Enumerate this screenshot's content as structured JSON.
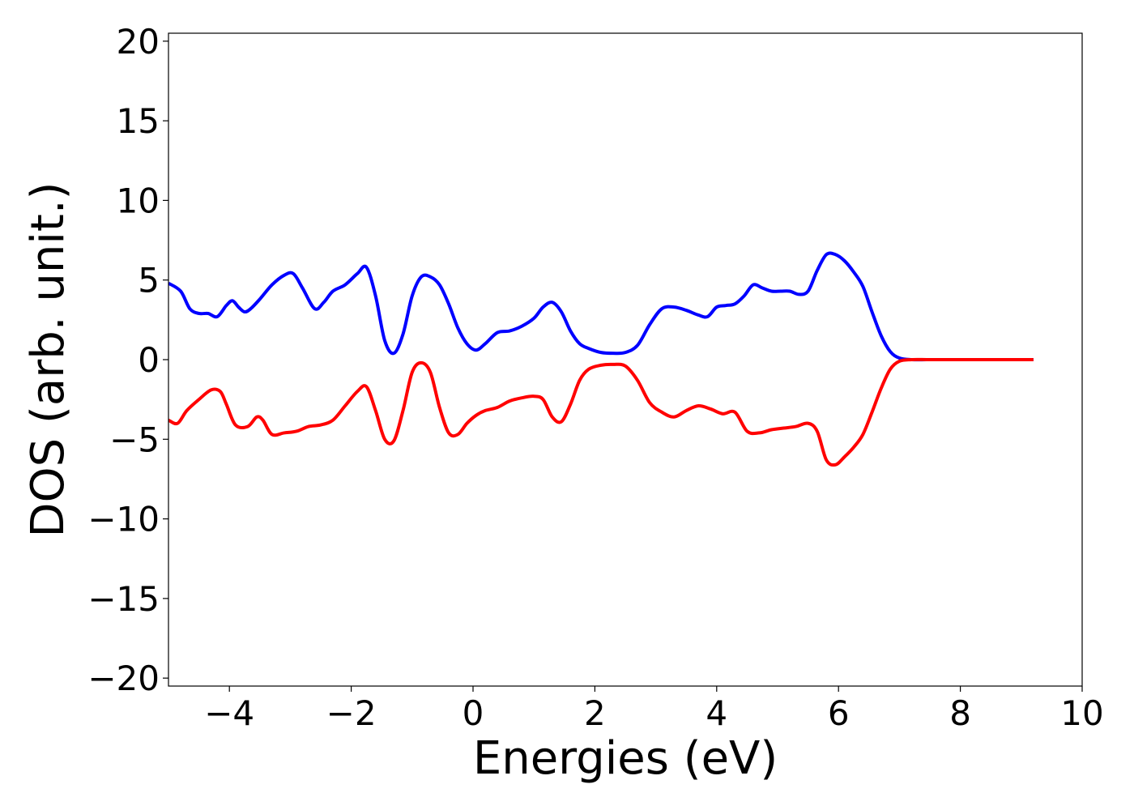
{
  "chart_data": {
    "type": "line",
    "title": "",
    "xlabel": "Energies (eV)",
    "ylabel": "DOS (arb. unit.)",
    "xlim": [
      -5.0,
      10.0
    ],
    "ylim": [
      -20.5,
      20.5
    ],
    "xticks": [
      {
        "value": -4,
        "label": "−4"
      },
      {
        "value": -2,
        "label": "−2"
      },
      {
        "value": 0,
        "label": "0"
      },
      {
        "value": 2,
        "label": "2"
      },
      {
        "value": 4,
        "label": "4"
      },
      {
        "value": 6,
        "label": "6"
      },
      {
        "value": 8,
        "label": "8"
      },
      {
        "value": 10,
        "label": "10"
      }
    ],
    "yticks": [
      {
        "value": 20,
        "label": "20"
      },
      {
        "value": 15,
        "label": "15"
      },
      {
        "value": 10,
        "label": "10"
      },
      {
        "value": 5,
        "label": "5"
      },
      {
        "value": 0,
        "label": "0"
      },
      {
        "value": -5,
        "label": "−5"
      },
      {
        "value": -10,
        "label": "−10"
      },
      {
        "value": -15,
        "label": "−15"
      },
      {
        "value": -20,
        "label": "−20"
      }
    ],
    "grid": false,
    "legend": "none",
    "series": [
      {
        "color": "#0000ff",
        "x": [
          -5.0,
          -4.8,
          -4.65,
          -4.5,
          -4.35,
          -4.2,
          -4.05,
          -3.95,
          -3.85,
          -3.75,
          -3.65,
          -3.5,
          -3.3,
          -3.1,
          -2.95,
          -2.8,
          -2.6,
          -2.45,
          -2.3,
          -2.1,
          -1.9,
          -1.75,
          -1.6,
          -1.45,
          -1.3,
          -1.15,
          -1.0,
          -0.85,
          -0.7,
          -0.55,
          -0.4,
          -0.25,
          -0.1,
          0.05,
          0.2,
          0.4,
          0.6,
          0.8,
          1.0,
          1.15,
          1.3,
          1.45,
          1.6,
          1.75,
          1.9,
          2.1,
          2.3,
          2.5,
          2.7,
          2.9,
          3.1,
          3.3,
          3.5,
          3.7,
          3.85,
          4.0,
          4.15,
          4.3,
          4.45,
          4.6,
          4.75,
          4.9,
          5.05,
          5.2,
          5.35,
          5.5,
          5.65,
          5.8,
          5.95,
          6.1,
          6.25,
          6.4,
          6.55,
          6.7,
          6.85,
          7.0,
          7.2,
          7.5,
          8.0,
          8.5,
          9.2
        ],
        "y": [
          4.8,
          4.3,
          3.2,
          2.9,
          2.9,
          2.7,
          3.4,
          3.7,
          3.3,
          3.0,
          3.2,
          3.8,
          4.7,
          5.3,
          5.4,
          4.5,
          3.2,
          3.6,
          4.3,
          4.7,
          5.4,
          5.8,
          4.0,
          1.2,
          0.4,
          1.6,
          4.0,
          5.2,
          5.2,
          4.7,
          3.5,
          2.0,
          1.0,
          0.6,
          1.0,
          1.7,
          1.8,
          2.1,
          2.6,
          3.3,
          3.6,
          3.0,
          1.8,
          1.0,
          0.7,
          0.45,
          0.4,
          0.45,
          0.9,
          2.2,
          3.2,
          3.3,
          3.1,
          2.8,
          2.7,
          3.3,
          3.4,
          3.5,
          4.0,
          4.7,
          4.5,
          4.3,
          4.3,
          4.3,
          4.1,
          4.3,
          5.6,
          6.6,
          6.6,
          6.2,
          5.5,
          4.6,
          3.0,
          1.5,
          0.5,
          0.1,
          0.0,
          0.0,
          0.0,
          0.0,
          0.0
        ]
      },
      {
        "color": "#ff0000",
        "x": [
          -5.0,
          -4.85,
          -4.7,
          -4.5,
          -4.3,
          -4.15,
          -4.05,
          -3.9,
          -3.7,
          -3.55,
          -3.45,
          -3.3,
          -3.1,
          -2.9,
          -2.7,
          -2.5,
          -2.3,
          -2.1,
          -1.9,
          -1.75,
          -1.6,
          -1.45,
          -1.3,
          -1.15,
          -1.0,
          -0.85,
          -0.7,
          -0.55,
          -0.4,
          -0.25,
          -0.1,
          0.05,
          0.2,
          0.4,
          0.6,
          0.8,
          1.0,
          1.15,
          1.3,
          1.45,
          1.6,
          1.75,
          1.9,
          2.1,
          2.3,
          2.5,
          2.7,
          2.9,
          3.1,
          3.3,
          3.5,
          3.7,
          3.9,
          4.1,
          4.3,
          4.5,
          4.7,
          4.9,
          5.1,
          5.3,
          5.5,
          5.65,
          5.8,
          5.95,
          6.1,
          6.25,
          6.4,
          6.55,
          6.7,
          6.85,
          7.0,
          7.2,
          7.5,
          8.0,
          8.5,
          9.2
        ],
        "y": [
          -3.8,
          -4.0,
          -3.2,
          -2.5,
          -1.9,
          -2.0,
          -2.8,
          -4.1,
          -4.2,
          -3.6,
          -3.8,
          -4.7,
          -4.6,
          -4.5,
          -4.2,
          -4.1,
          -3.8,
          -2.9,
          -2.0,
          -1.7,
          -3.2,
          -5.0,
          -5.1,
          -3.2,
          -0.8,
          -0.2,
          -0.8,
          -3.0,
          -4.6,
          -4.7,
          -4.0,
          -3.5,
          -3.2,
          -3.0,
          -2.6,
          -2.4,
          -2.3,
          -2.5,
          -3.6,
          -3.9,
          -2.8,
          -1.3,
          -0.6,
          -0.35,
          -0.3,
          -0.4,
          -1.3,
          -2.7,
          -3.3,
          -3.6,
          -3.2,
          -2.9,
          -3.1,
          -3.4,
          -3.3,
          -4.5,
          -4.6,
          -4.4,
          -4.3,
          -4.2,
          -4.0,
          -4.5,
          -6.3,
          -6.6,
          -6.1,
          -5.5,
          -4.7,
          -3.3,
          -1.8,
          -0.6,
          -0.1,
          0.0,
          0.0,
          0.0,
          0.0,
          0.0
        ]
      }
    ]
  }
}
